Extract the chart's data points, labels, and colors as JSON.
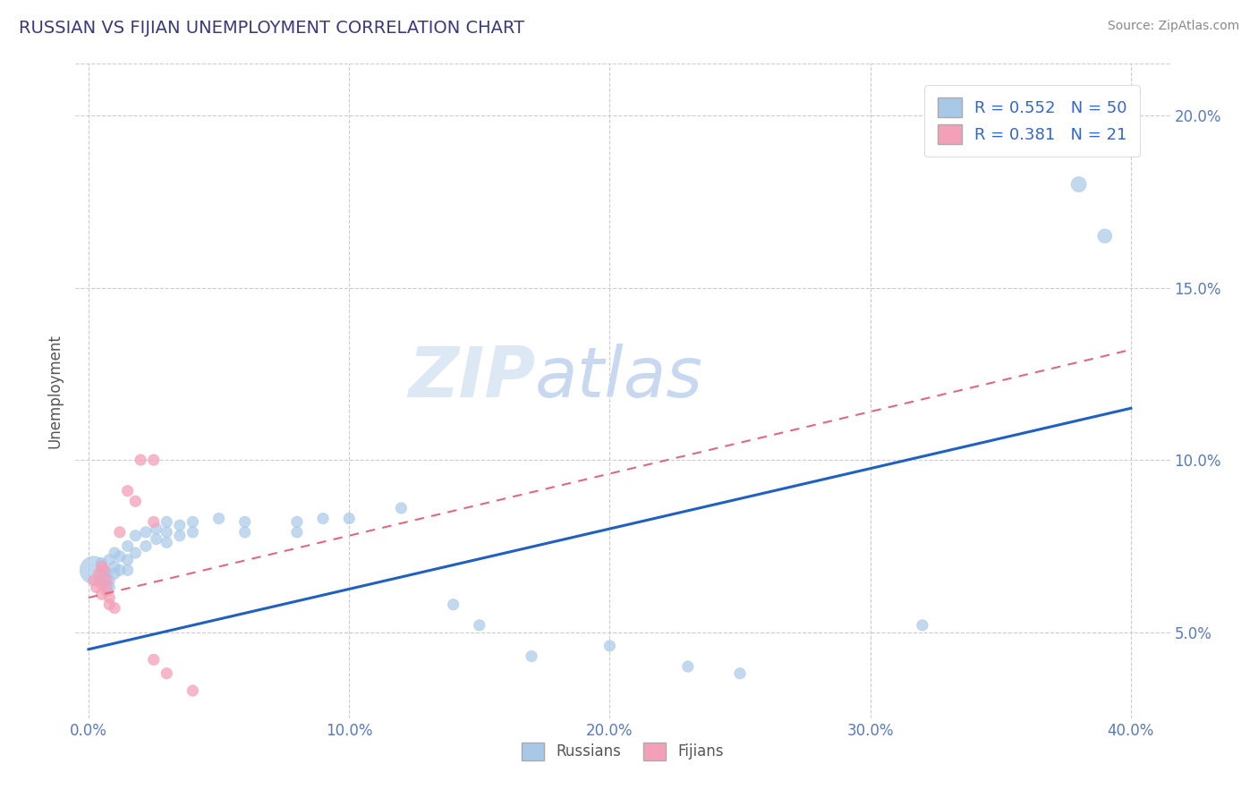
{
  "title": "RUSSIAN VS FIJIAN UNEMPLOYMENT CORRELATION CHART",
  "source_text": "Source: ZipAtlas.com",
  "xlabel_ticks": [
    "0.0%",
    "10.0%",
    "20.0%",
    "30.0%",
    "40.0%"
  ],
  "xlabel_tick_vals": [
    0.0,
    0.1,
    0.2,
    0.3,
    0.4
  ],
  "ylabel_ticks": [
    "5.0%",
    "10.0%",
    "15.0%",
    "20.0%"
  ],
  "ylabel_tick_vals": [
    0.05,
    0.1,
    0.15,
    0.2
  ],
  "xlim": [
    -0.005,
    0.415
  ],
  "ylim": [
    0.025,
    0.215
  ],
  "ylabel": "Unemployment",
  "watermark": "ZIPatlas",
  "russian_color": "#a8c8e8",
  "fijian_color": "#f4a0b8",
  "russian_line_color": "#2060c0",
  "fijian_line_color": "#e06880",
  "russian_points": [
    [
      0.002,
      0.068
    ],
    [
      0.004,
      0.065
    ],
    [
      0.005,
      0.07
    ],
    [
      0.005,
      0.067
    ],
    [
      0.006,
      0.068
    ],
    [
      0.006,
      0.065
    ],
    [
      0.007,
      0.067
    ],
    [
      0.007,
      0.063
    ],
    [
      0.008,
      0.071
    ],
    [
      0.008,
      0.065
    ],
    [
      0.008,
      0.063
    ],
    [
      0.01,
      0.073
    ],
    [
      0.01,
      0.069
    ],
    [
      0.01,
      0.067
    ],
    [
      0.012,
      0.072
    ],
    [
      0.012,
      0.068
    ],
    [
      0.015,
      0.075
    ],
    [
      0.015,
      0.071
    ],
    [
      0.015,
      0.068
    ],
    [
      0.018,
      0.078
    ],
    [
      0.018,
      0.073
    ],
    [
      0.022,
      0.079
    ],
    [
      0.022,
      0.075
    ],
    [
      0.026,
      0.08
    ],
    [
      0.026,
      0.077
    ],
    [
      0.03,
      0.082
    ],
    [
      0.03,
      0.079
    ],
    [
      0.03,
      0.076
    ],
    [
      0.035,
      0.081
    ],
    [
      0.035,
      0.078
    ],
    [
      0.04,
      0.082
    ],
    [
      0.04,
      0.079
    ],
    [
      0.05,
      0.083
    ],
    [
      0.06,
      0.082
    ],
    [
      0.06,
      0.079
    ],
    [
      0.08,
      0.082
    ],
    [
      0.08,
      0.079
    ],
    [
      0.09,
      0.083
    ],
    [
      0.1,
      0.083
    ],
    [
      0.12,
      0.086
    ],
    [
      0.14,
      0.058
    ],
    [
      0.15,
      0.052
    ],
    [
      0.17,
      0.043
    ],
    [
      0.2,
      0.046
    ],
    [
      0.23,
      0.04
    ],
    [
      0.25,
      0.038
    ],
    [
      0.32,
      0.052
    ],
    [
      0.37,
      0.197
    ],
    [
      0.38,
      0.18
    ],
    [
      0.39,
      0.165
    ]
  ],
  "russian_sizes": [
    500,
    80,
    80,
    80,
    80,
    80,
    80,
    80,
    80,
    80,
    80,
    80,
    80,
    80,
    80,
    80,
    80,
    80,
    80,
    80,
    80,
    80,
    80,
    80,
    80,
    80,
    80,
    80,
    80,
    80,
    80,
    80,
    80,
    80,
    80,
    80,
    80,
    80,
    80,
    80,
    80,
    80,
    80,
    80,
    80,
    80,
    80,
    120,
    150,
    130
  ],
  "fijian_points": [
    [
      0.002,
      0.065
    ],
    [
      0.003,
      0.063
    ],
    [
      0.004,
      0.067
    ],
    [
      0.005,
      0.069
    ],
    [
      0.005,
      0.064
    ],
    [
      0.005,
      0.061
    ],
    [
      0.006,
      0.068
    ],
    [
      0.007,
      0.065
    ],
    [
      0.007,
      0.062
    ],
    [
      0.008,
      0.06
    ],
    [
      0.008,
      0.058
    ],
    [
      0.01,
      0.057
    ],
    [
      0.012,
      0.079
    ],
    [
      0.015,
      0.091
    ],
    [
      0.018,
      0.088
    ],
    [
      0.02,
      0.1
    ],
    [
      0.025,
      0.1
    ],
    [
      0.025,
      0.082
    ],
    [
      0.025,
      0.042
    ],
    [
      0.03,
      0.038
    ],
    [
      0.04,
      0.033
    ]
  ],
  "fijian_sizes": [
    80,
    80,
    80,
    80,
    80,
    80,
    80,
    80,
    80,
    80,
    80,
    80,
    80,
    80,
    80,
    80,
    80,
    80,
    80,
    80,
    80
  ],
  "russian_line": [
    [
      0.0,
      0.045
    ],
    [
      0.4,
      0.115
    ]
  ],
  "fijian_line": [
    [
      0.0,
      0.06
    ],
    [
      0.4,
      0.132
    ]
  ]
}
